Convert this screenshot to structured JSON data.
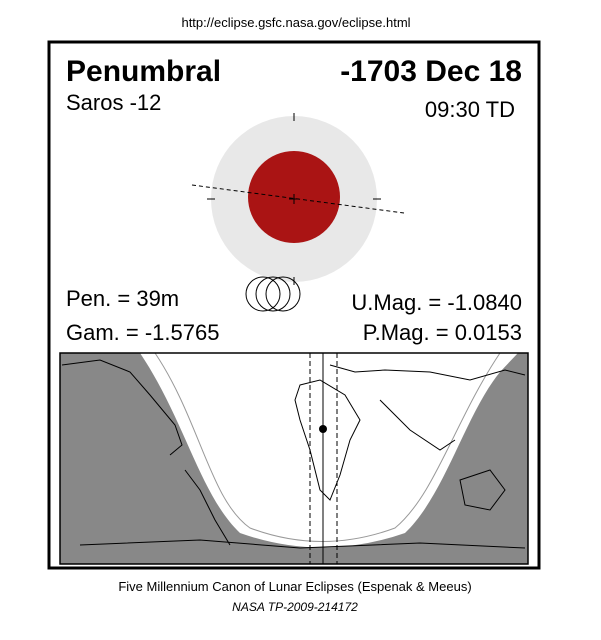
{
  "header": {
    "url": "http://eclipse.gsfc.nasa.gov/eclipse.html"
  },
  "panel": {
    "type": "Penumbral",
    "date": "-1703 Dec 18",
    "saros": "Saros -12",
    "time": "09:30 TD",
    "pen": "Pen. =  39m",
    "gam": "Gam. = -1.5765",
    "umag": "U.Mag. = -1.0840",
    "pmag": "P.Mag. = 0.0153"
  },
  "footer": {
    "line1": "Five Millennium Canon of Lunar Eclipses (Espenak & Meeus)",
    "line2": "NASA TP-2009-214172"
  }
}
